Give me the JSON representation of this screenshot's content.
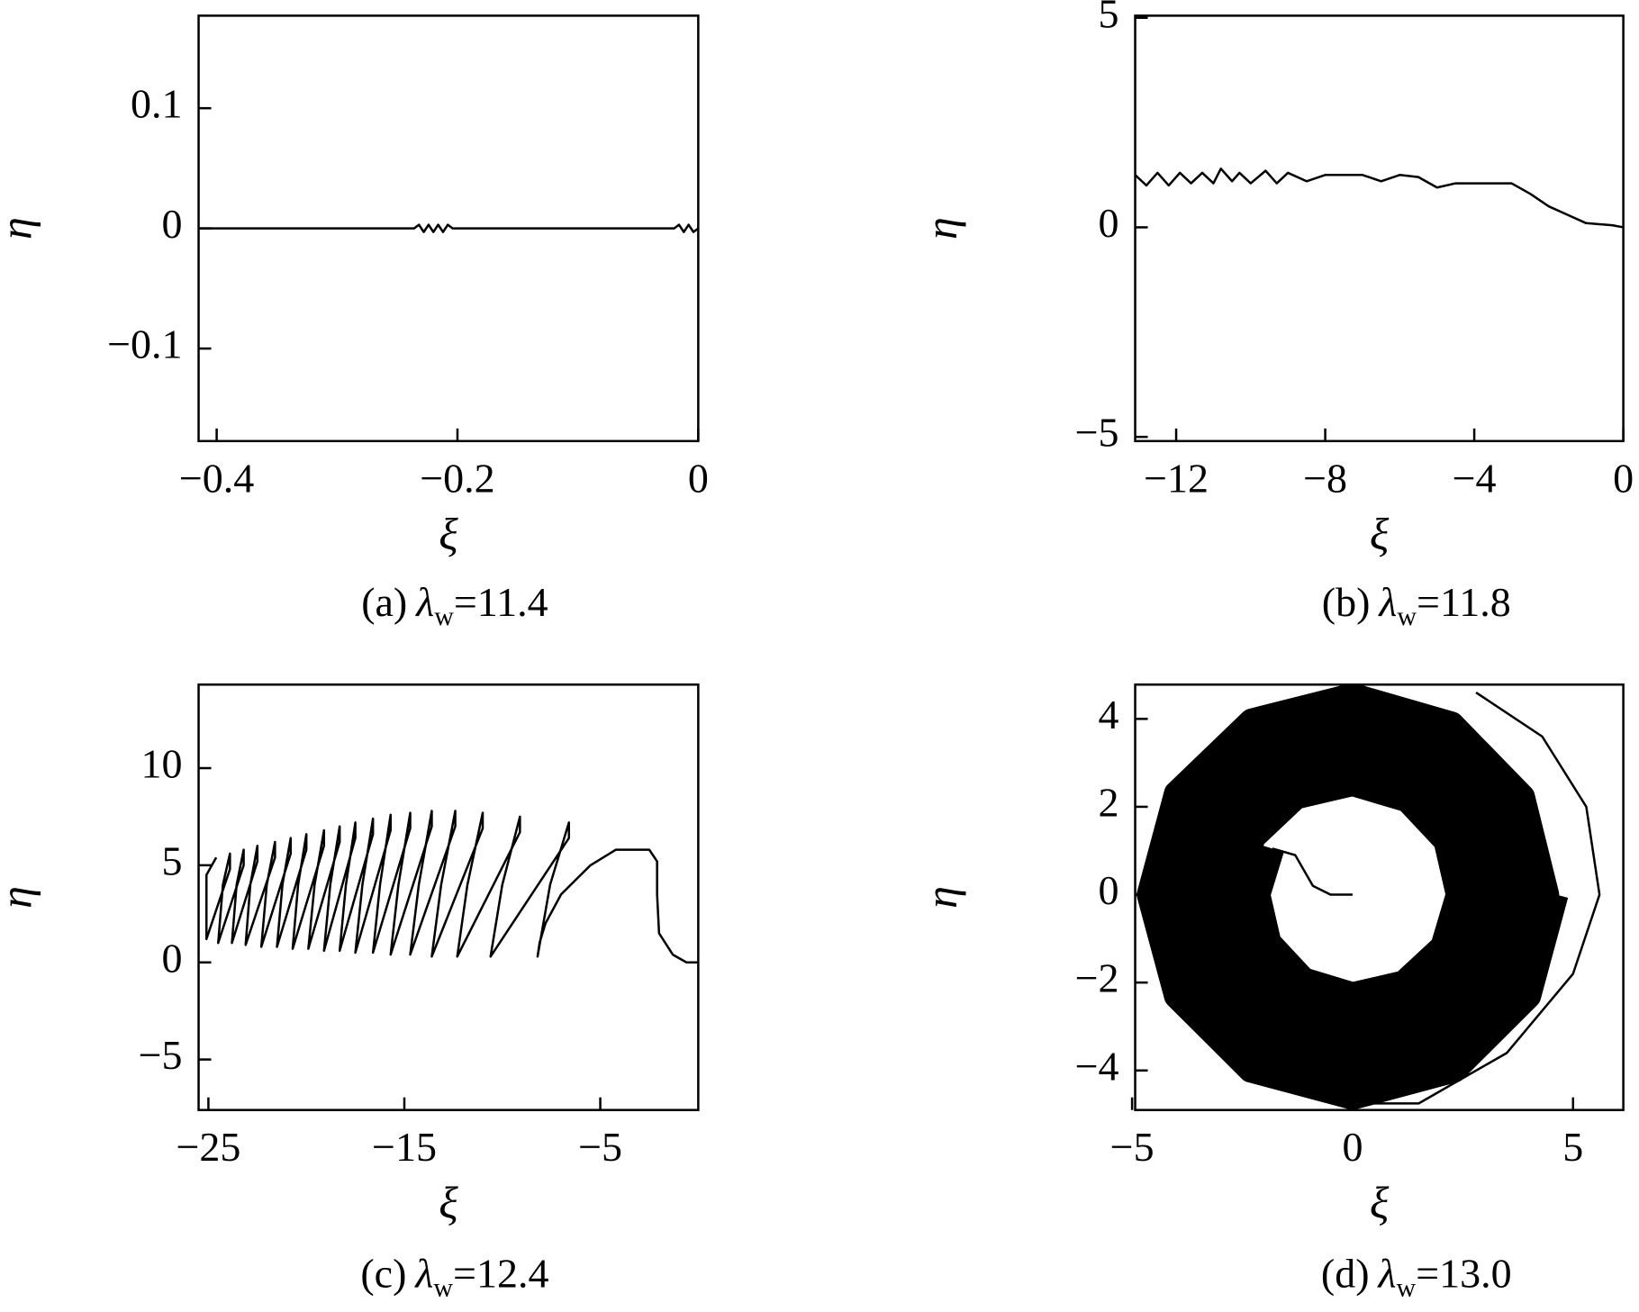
{
  "chart_data": [
    {
      "type": "line",
      "xlabel": "ξ",
      "ylabel": "η",
      "caption": {
        "label": "(a)",
        "symbol": "λ",
        "subscript": "w",
        "text": "=11.4"
      },
      "xlim": [
        -0.415,
        0.0
      ],
      "ylim": [
        -0.177,
        0.177
      ],
      "xticks": [
        {
          "value": -0.4,
          "label": "−0.4"
        },
        {
          "value": -0.2,
          "label": "−0.2"
        },
        0
      ],
      "yticks": [
        {
          "value": -0.1,
          "label": "−0.1"
        },
        0,
        0.1
      ],
      "series": [
        {
          "color": "#000000",
          "x": [
            -0.415,
            -0.236,
            -0.232,
            -0.228,
            -0.224,
            -0.22,
            -0.216,
            -0.212,
            -0.208,
            -0.204,
            -0.1,
            -0.02,
            -0.016,
            -0.012,
            -0.008,
            -0.004,
            0.0
          ],
          "values": [
            0,
            0,
            0.003,
            -0.003,
            0.003,
            -0.003,
            0.003,
            -0.003,
            0.003,
            0,
            0,
            0,
            0.003,
            -0.003,
            0.003,
            -0.003,
            0
          ]
        }
      ]
    },
    {
      "type": "line",
      "xlabel": "ξ",
      "ylabel": "η",
      "caption": {
        "label": "(b)",
        "symbol": "λ",
        "subscript": "w",
        "text": "=11.8"
      },
      "xlim": [
        -13.1,
        0.0
      ],
      "ylim": [
        -5.1,
        5.05
      ],
      "xticks": [
        {
          "value": -12,
          "label": "−12"
        },
        {
          "value": -8,
          "label": "−8"
        },
        {
          "value": -4,
          "label": "−4"
        },
        0
      ],
      "yticks": [
        {
          "value": -5,
          "label": "−5"
        },
        0,
        5
      ],
      "series": [
        {
          "color": "#000000",
          "x": [
            0,
            -0.3,
            -1,
            -1.5,
            -2,
            -2.5,
            -3,
            -4,
            -4.5,
            -5,
            -5.5,
            -6,
            -6.5,
            -7,
            -8,
            -8.5,
            -9,
            -9.3,
            -9.6,
            -10,
            -10.3,
            -10.5,
            -10.8,
            -11,
            -11.3,
            -11.6,
            -11.9,
            -12.2,
            -12.5,
            -12.8,
            -13.1
          ],
          "values": [
            0,
            0.05,
            0.1,
            0.3,
            0.5,
            0.8,
            1.05,
            1.05,
            1.05,
            0.95,
            1.2,
            1.25,
            1.1,
            1.25,
            1.25,
            1.1,
            1.3,
            1.05,
            1.35,
            1.05,
            1.3,
            1.1,
            1.4,
            1.05,
            1.3,
            1.05,
            1.3,
            1.0,
            1.3,
            1.0,
            1.25
          ]
        }
      ]
    },
    {
      "type": "line",
      "xlabel": "ξ",
      "ylabel": "η",
      "caption": {
        "label": "(c)",
        "symbol": "λ",
        "subscript": "w",
        "text": "=12.4"
      },
      "xlim": [
        -25.5,
        0.0
      ],
      "ylim": [
        -7.6,
        14.3
      ],
      "xticks": [
        {
          "value": -25,
          "label": "−25"
        },
        {
          "value": -15,
          "label": "−15"
        },
        {
          "value": -5,
          "label": "−5"
        }
      ],
      "yticks": [
        {
          "value": -5,
          "label": "−5"
        },
        0,
        5,
        10
      ],
      "series": [
        {
          "color": "#000000",
          "x": [
            0,
            -0.6,
            -1.3,
            -2.0,
            -2.1,
            -2.1,
            -2.5,
            -4.2,
            -5.5,
            -7.0,
            -7.8,
            -8.1,
            -8.2,
            -7.56,
            -6.6,
            -6.6,
            -10.6,
            -10.0,
            -9.1,
            -9.1,
            -12.3,
            -11.78,
            -11.0,
            -11.0,
            -13.6,
            -13.12,
            -12.4,
            -12.4,
            -14.7,
            -14.26,
            -13.6,
            -13.6,
            -15.7,
            -15.3,
            -14.7,
            -14.7,
            -16.6,
            -16.24,
            -15.7,
            -15.7,
            -17.5,
            -17.14,
            -16.6,
            -16.6,
            -18.3,
            -17.98,
            -17.5,
            -17.5,
            -19.1,
            -18.78,
            -18.3,
            -18.3,
            -19.9,
            -19.58,
            -19.1,
            -19.1,
            -20.7,
            -20.42,
            -20.0,
            -20.0,
            -21.5,
            -21.22,
            -20.8,
            -20.8,
            -22.3,
            -22.02,
            -21.6,
            -21.6,
            -23.1,
            -22.86,
            -22.5,
            -22.5,
            -23.8,
            -23.56,
            -23.2,
            -23.2,
            -24.5,
            -24.26,
            -23.9,
            -23.9,
            -25.1,
            -25.1,
            -24.6
          ],
          "values": [
            0,
            0,
            0.4,
            1.5,
            3.5,
            5.2,
            5.8,
            5.8,
            5.0,
            3.5,
            2.0,
            1.0,
            0.3,
            4,
            7.2,
            6.4,
            0.3,
            4,
            7.5,
            6.7,
            0.3,
            4,
            7.7,
            6.9,
            0.3,
            4,
            7.8,
            7.0,
            0.4,
            4,
            7.8,
            7.0,
            0.4,
            4,
            7.7,
            6.9,
            0.5,
            4,
            7.6,
            6.8,
            0.5,
            4,
            7.4,
            6.6,
            0.6,
            4,
            7.2,
            6.4,
            0.6,
            4,
            7.0,
            6.2,
            0.7,
            4,
            6.8,
            6.0,
            0.7,
            4,
            6.6,
            5.8,
            0.8,
            4,
            6.4,
            5.6,
            0.8,
            4,
            6.2,
            5.4,
            0.9,
            4,
            6.0,
            5.2,
            1.0,
            4,
            5.8,
            5.0,
            1.0,
            4,
            5.6,
            4.8,
            1.2,
            4.5,
            5.4
          ]
        }
      ]
    },
    {
      "type": "line",
      "xlabel": "ξ",
      "ylabel": "η",
      "caption": {
        "label": "(d)",
        "symbol": "λ",
        "subscript": "w",
        "text": "=13.0"
      },
      "xlim": [
        -4.93,
        6.14
      ],
      "ylim": [
        -4.9,
        4.78
      ],
      "xticks": [
        {
          "value": -5,
          "label": "−5"
        },
        0,
        5
      ],
      "yticks": [
        {
          "value": -4,
          "label": "−4"
        },
        {
          "value": -2,
          "label": "−2"
        },
        0,
        2,
        4
      ],
      "series": [
        {
          "color": "#000000",
          "x": [
            0,
            -0.5,
            -0.9,
            -1.3,
            -1.82,
            null,
            0,
            1.5,
            3.5,
            5.0,
            5.6,
            5.3,
            4.3,
            2.8
          ],
          "values": [
            0,
            0,
            0.2,
            0.9,
            1.05,
            null,
            -4.75,
            -4.75,
            -3.6,
            -1.8,
            0,
            2.0,
            3.6,
            4.6
          ]
        },
        {
          "color": "#000000",
          "x": [
            -1.82,
            -2.14,
            -1.89,
            -1.11,
            0,
            1.16,
            2.04,
            2.39,
            2.11,
            1.24,
            0,
            -1.28,
            -2.25,
            -2.65,
            -2.33,
            -1.37,
            0,
            1.41,
            2.47,
            2.9,
            2.55,
            1.49,
            0,
            -1.53,
            -2.69,
            -3.15,
            -2.76,
            -1.62,
            0,
            1.66,
            2.91,
            3.4,
            2.98,
            1.74,
            0,
            -1.79,
            -3.13,
            -3.65,
            -3.2,
            -1.87,
            0,
            1.91,
            3.34,
            3.91,
            3.42,
            1.99,
            0,
            -2.04,
            -3.56,
            -4.16,
            -3.64,
            -2.12,
            0,
            2.16,
            3.78,
            4.41,
            3.86,
            2.25,
            0,
            -2.29,
            -4.0,
            -4.62,
            -4.0,
            -2.31,
            0,
            2.31,
            4.0,
            4.62
          ],
          "values": [
            1.05,
            0,
            -1.09,
            -1.93,
            -2.27,
            -2.0,
            -1.18,
            0,
            1.22,
            2.15,
            2.52,
            2.22,
            1.3,
            0,
            -1.34,
            -2.36,
            -2.77,
            -2.43,
            -1.43,
            0,
            1.47,
            2.58,
            3.02,
            2.66,
            1.55,
            0,
            -1.6,
            -2.8,
            -3.28,
            -2.87,
            -1.68,
            0,
            1.72,
            3.02,
            3.53,
            3.09,
            1.81,
            0,
            -1.85,
            -3.24,
            -3.78,
            -3.31,
            -1.93,
            0,
            1.97,
            3.46,
            4.03,
            3.53,
            2.06,
            0,
            -2.1,
            -3.67,
            -4.28,
            -3.75,
            -2.18,
            0,
            2.23,
            3.89,
            4.54,
            3.96,
            2.31,
            0,
            -2.31,
            -4.0,
            -4.62,
            -4.0,
            -2.31,
            0
          ]
        }
      ]
    }
  ]
}
